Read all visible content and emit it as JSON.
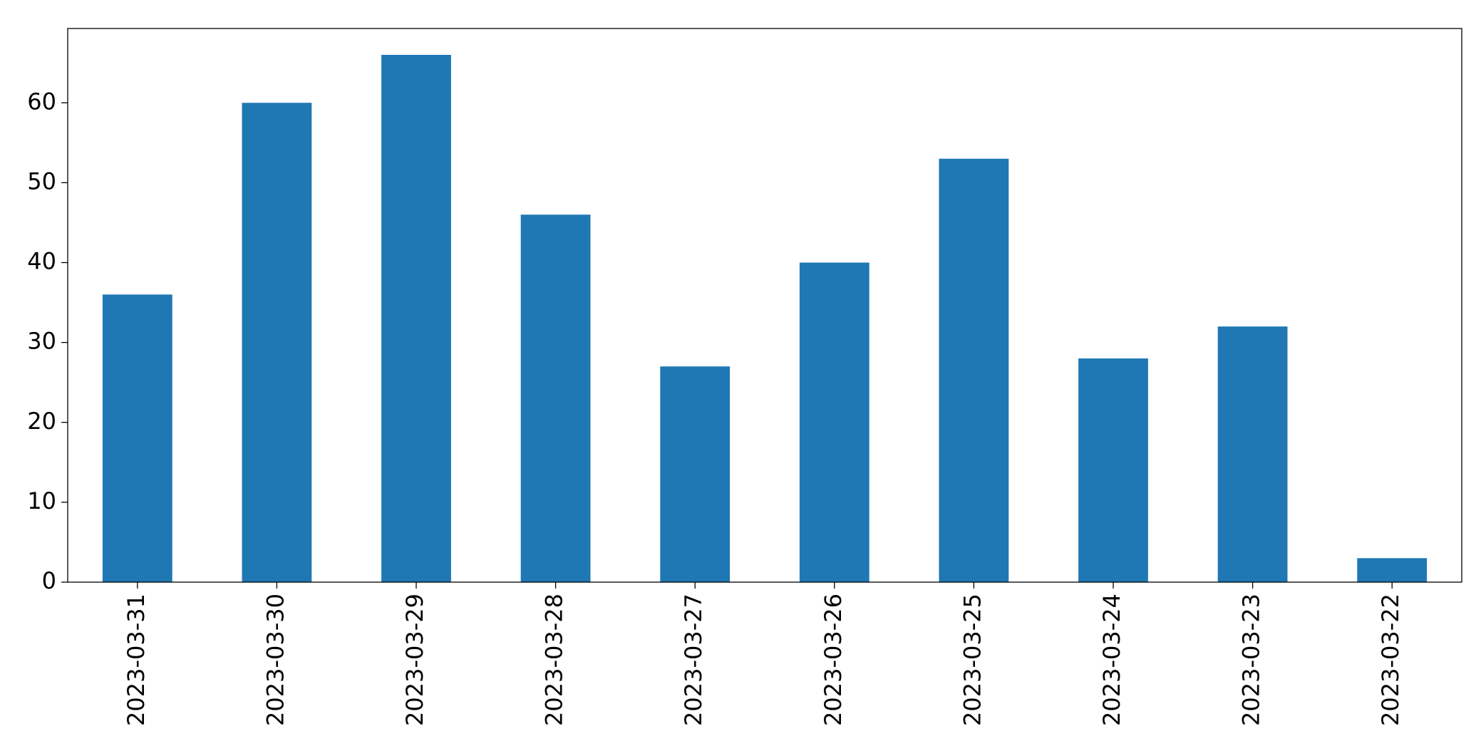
{
  "chart_data": {
    "type": "bar",
    "categories": [
      "2023-03-31",
      "2023-03-30",
      "2023-03-29",
      "2023-03-28",
      "2023-03-27",
      "2023-03-26",
      "2023-03-25",
      "2023-03-24",
      "2023-03-23",
      "2023-03-22"
    ],
    "values": [
      36,
      60,
      66,
      46,
      27,
      40,
      53,
      28,
      32,
      3
    ],
    "color": "#1f77b4",
    "ylim": [
      0,
      69.3
    ],
    "yticks": [
      0,
      10,
      20,
      30,
      40,
      50,
      60
    ]
  }
}
